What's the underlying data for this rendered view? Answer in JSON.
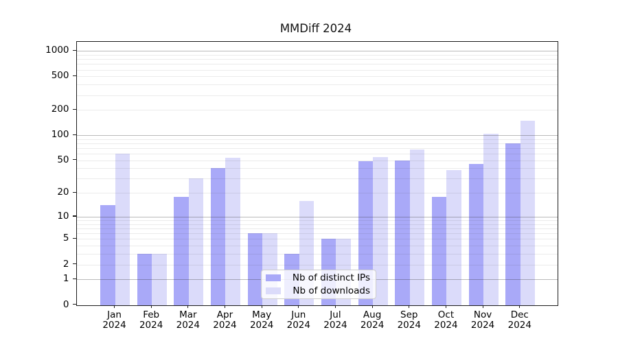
{
  "title": "MMDiff 2024",
  "legend": {
    "items": [
      {
        "label": "Nb of distinct IPs",
        "color": "#a9a9f8"
      },
      {
        "label": "Nb of downloads",
        "color": "#dbdbfa"
      }
    ],
    "position": "lower center"
  },
  "chart_data": {
    "type": "bar",
    "title": "MMDiff 2024",
    "categories": [
      "Jan 2024",
      "Feb 2024",
      "Mar 2024",
      "Apr 2024",
      "May 2024",
      "Jun 2024",
      "Jul 2024",
      "Aug 2024",
      "Sep 2024",
      "Oct 2024",
      "Nov 2024",
      "Dec 2024"
    ],
    "months": [
      "Jan",
      "Feb",
      "Mar",
      "Apr",
      "May",
      "Jun",
      "Jul",
      "Aug",
      "Sep",
      "Oct",
      "Nov",
      "Dec"
    ],
    "year": "2024",
    "series": [
      {
        "name": "Nb of distinct IPs",
        "color": "#a9a9f8",
        "values": [
          14,
          3,
          18,
          40,
          6,
          3,
          5,
          49,
          50,
          18,
          45,
          80
        ]
      },
      {
        "name": "Nb of downloads",
        "color": "#dbdbfa",
        "values": [
          60,
          3,
          30,
          54,
          6,
          16,
          5,
          55,
          68,
          38,
          104,
          150
        ]
      }
    ],
    "xlabel": "",
    "ylabel": "",
    "y_scale": "log10(value+1)",
    "y_ticks": [
      0,
      1,
      2,
      5,
      10,
      20,
      50,
      100,
      200,
      500,
      1000
    ],
    "y_minor_gridlines": [
      2,
      3,
      4,
      5,
      6,
      7,
      8,
      9,
      20,
      30,
      40,
      50,
      60,
      70,
      80,
      90,
      200,
      300,
      400,
      500,
      600,
      700,
      800,
      900
    ],
    "y_major_gridlines": [
      1,
      10,
      100,
      1000
    ],
    "ylim": [
      0,
      1280
    ],
    "grid": true,
    "legend_position": "lower center"
  }
}
